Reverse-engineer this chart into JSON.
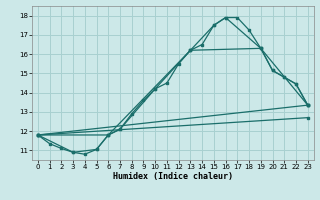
{
  "xlabel": "Humidex (Indice chaleur)",
  "background_color": "#cce8e8",
  "grid_color": "#a8d0d0",
  "line_color": "#1a6e6a",
  "xlim": [
    -0.5,
    23.5
  ],
  "ylim": [
    10.5,
    18.5
  ],
  "yticks": [
    11,
    12,
    13,
    14,
    15,
    16,
    17,
    18
  ],
  "xticks": [
    0,
    1,
    2,
    3,
    4,
    5,
    6,
    7,
    8,
    9,
    10,
    11,
    12,
    13,
    14,
    15,
    16,
    17,
    18,
    19,
    20,
    21,
    22,
    23
  ],
  "line1_x": [
    0,
    1,
    2,
    3,
    4,
    5,
    6,
    7,
    8,
    9,
    10,
    11,
    12,
    13,
    14,
    15,
    16,
    17,
    18,
    19,
    20,
    21,
    22,
    23
  ],
  "line1_y": [
    11.8,
    11.35,
    11.1,
    10.9,
    10.8,
    11.05,
    11.8,
    12.1,
    12.9,
    13.6,
    14.2,
    14.5,
    15.5,
    16.2,
    16.5,
    17.5,
    17.9,
    17.9,
    17.25,
    16.3,
    15.15,
    14.8,
    14.45,
    13.35
  ],
  "line2_x": [
    0,
    3,
    5,
    6,
    7,
    10,
    13,
    15,
    16,
    19,
    20,
    21,
    22,
    23
  ],
  "line2_y": [
    11.8,
    10.9,
    11.05,
    11.8,
    12.1,
    14.2,
    16.2,
    17.5,
    17.9,
    16.3,
    15.15,
    14.8,
    14.45,
    13.35
  ],
  "line3_x": [
    0,
    6,
    13,
    19,
    23
  ],
  "line3_y": [
    11.8,
    11.8,
    16.2,
    16.3,
    13.35
  ],
  "line4_x": [
    0,
    23
  ],
  "line4_y": [
    11.8,
    13.35
  ],
  "line5_x": [
    0,
    23
  ],
  "line5_y": [
    11.8,
    12.7
  ]
}
